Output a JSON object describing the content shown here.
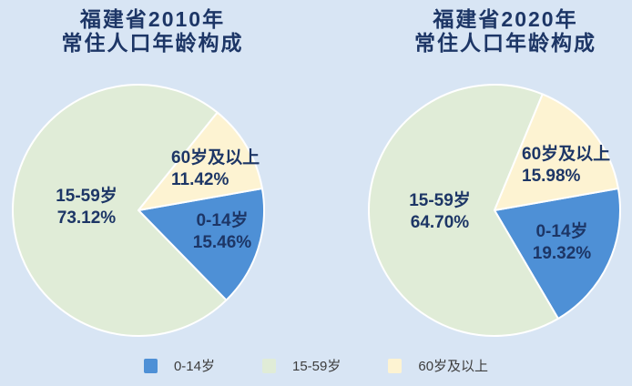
{
  "style": {
    "background": "#d8e5f4",
    "slice_border": "#ffffff",
    "label_text_color": "#1d3666",
    "legend_text_color": "#3d3d3d",
    "color_age_0_14": "#4e90d6",
    "color_age_15_59": "#e0ecd7",
    "color_age_60_plus": "#fdf3d2"
  },
  "chart_data": [
    {
      "type": "pie",
      "title": "福建省2010年常住人口年龄构成",
      "title_line1": "福建省2010年",
      "title_line2": "常住人口年龄构成",
      "categories": [
        "0-14岁",
        "15-59岁",
        "60岁及以上"
      ],
      "values": [
        15.46,
        73.12,
        11.42
      ],
      "unit": "%",
      "colors": [
        "#4e90d6",
        "#e0ecd7",
        "#fdf3d2"
      ],
      "start_angle_deg_clockwise_from_top": 80,
      "legend_position": "bottom",
      "slice_labels": [
        {
          "name": "0-14岁",
          "pct": "15.46%"
        },
        {
          "name": "15-59岁",
          "pct": "73.12%"
        },
        {
          "name": "60岁及以上",
          "pct": "11.42%"
        }
      ]
    },
    {
      "type": "pie",
      "title": "福建省2020年常住人口年龄构成",
      "title_line1": "福建省2020年",
      "title_line2": "常住人口年龄构成",
      "categories": [
        "0-14岁",
        "15-59岁",
        "60岁及以上"
      ],
      "values": [
        19.32,
        64.7,
        15.98
      ],
      "unit": "%",
      "colors": [
        "#4e90d6",
        "#e0ecd7",
        "#fdf3d2"
      ],
      "start_angle_deg_clockwise_from_top": 80,
      "legend_position": "bottom",
      "slice_labels": [
        {
          "name": "0-14岁",
          "pct": "19.32%"
        },
        {
          "name": "15-59岁",
          "pct": "64.70%"
        },
        {
          "name": "60岁及以上",
          "pct": "15.98%"
        }
      ]
    }
  ],
  "legend": {
    "items": [
      {
        "label": "0-14岁",
        "color": "#4e90d6"
      },
      {
        "label": "15-59岁",
        "color": "#e0ecd7"
      },
      {
        "label": "60岁及以上",
        "color": "#fdf3d2"
      }
    ]
  }
}
